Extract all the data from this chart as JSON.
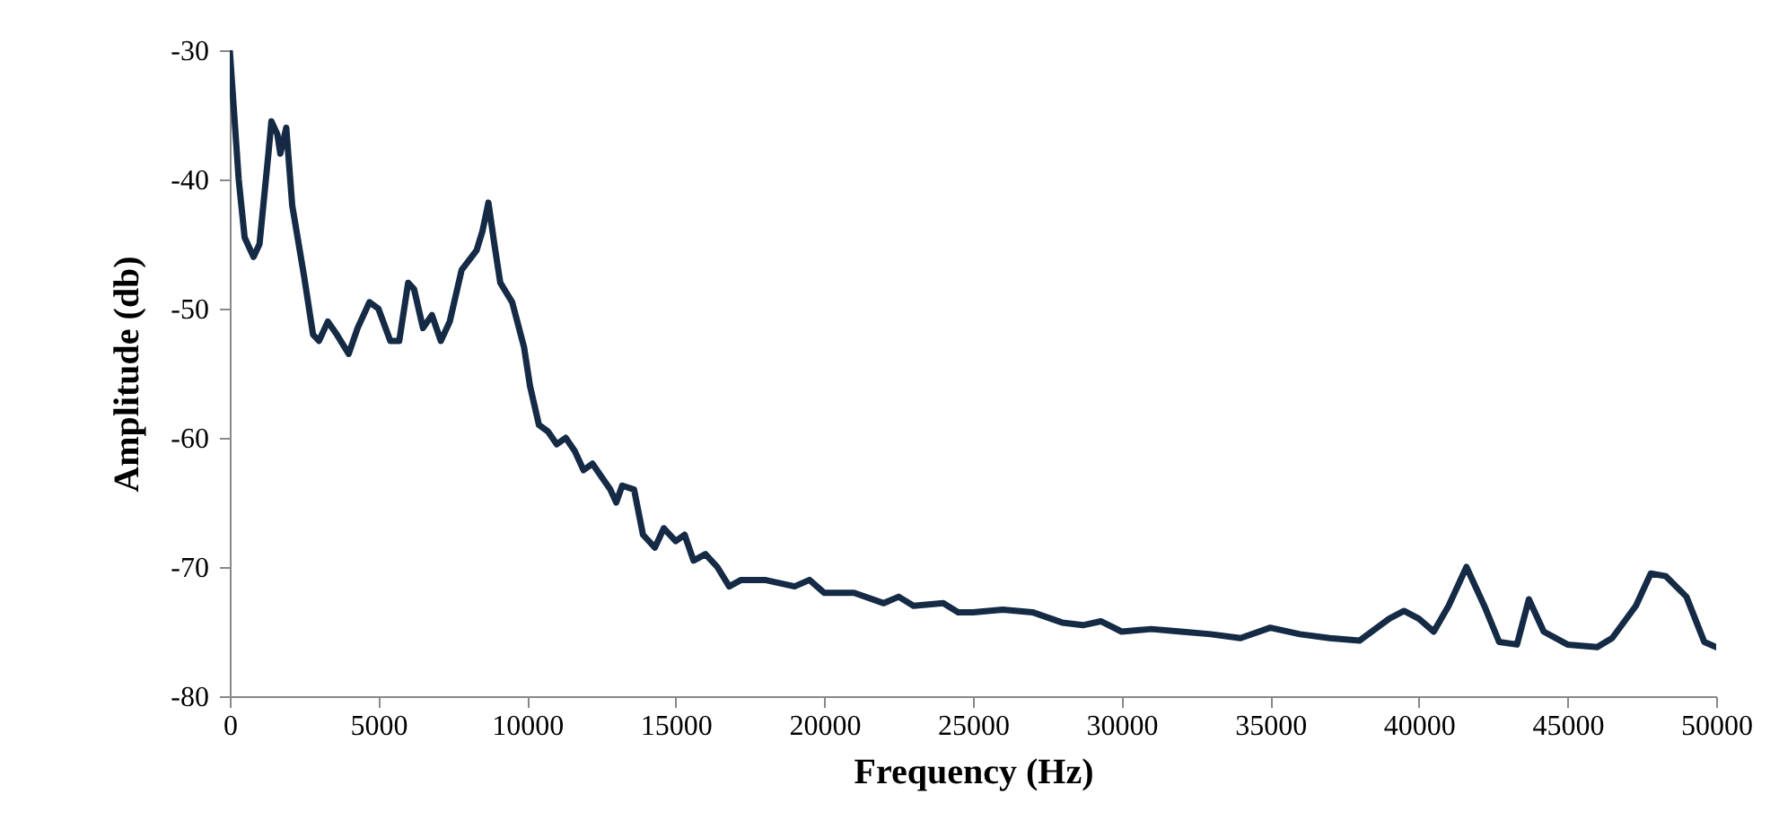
{
  "chart_data": {
    "type": "line",
    "xlabel": "Frequency (Hz)",
    "ylabel": "Amplitude (db)",
    "xlim": [
      0,
      50000
    ],
    "xticks": [
      0,
      5000,
      10000,
      15000,
      20000,
      25000,
      30000,
      35000,
      40000,
      45000,
      50000
    ],
    "ylim": [
      -80,
      -30
    ],
    "yticks": [
      -80,
      -70,
      -60,
      -50,
      -40,
      -30
    ],
    "grid": false,
    "marker": "none",
    "line_style": "solid",
    "x": [
      0,
      300,
      500,
      800,
      1000,
      1300,
      1400,
      1600,
      1700,
      1900,
      2100,
      2500,
      2800,
      3000,
      3300,
      3600,
      4000,
      4300,
      4700,
      5000,
      5400,
      5700,
      6000,
      6200,
      6500,
      6800,
      7100,
      7400,
      7800,
      8300,
      8500,
      8700,
      8900,
      9100,
      9500,
      9900,
      10100,
      10400,
      10700,
      11000,
      11300,
      11600,
      11900,
      12200,
      12500,
      12800,
      13000,
      13200,
      13600,
      13900,
      14300,
      14600,
      15000,
      15300,
      15600,
      16000,
      16400,
      16800,
      17200,
      18000,
      19000,
      19500,
      20000,
      21000,
      22000,
      22500,
      23000,
      24000,
      24500,
      25000,
      26000,
      27000,
      28000,
      28700,
      29300,
      30000,
      31000,
      32000,
      33000,
      34000,
      35000,
      36000,
      37000,
      38000,
      39000,
      39500,
      40000,
      40500,
      41000,
      41600,
      42200,
      42700,
      43300,
      43700,
      44200,
      45000,
      46000,
      46500,
      47300,
      47800,
      48300,
      49000,
      49600,
      50000
    ],
    "series": [
      {
        "color": "#142a45",
        "values": [
          -30,
          -40,
          -44.5,
          -46,
          -45,
          -38,
          -35.5,
          -36.5,
          -38,
          -36,
          -42,
          -47.5,
          -52,
          -52.5,
          -51,
          -52,
          -53.5,
          -51.5,
          -49.5,
          -50,
          -52.5,
          -52.5,
          -48,
          -48.5,
          -51.5,
          -50.5,
          -52.5,
          -51,
          -47,
          -45.5,
          -44,
          -41.8,
          -45,
          -48,
          -49.5,
          -53,
          -56,
          -59,
          -59.5,
          -60.5,
          -60,
          -61,
          -62.5,
          -62,
          -63,
          -64,
          -65,
          -63.7,
          -64,
          -67.5,
          -68.5,
          -67,
          -68,
          -67.5,
          -69.5,
          -69,
          -70,
          -71.5,
          -71,
          -71,
          -71.5,
          -71,
          -72,
          -72,
          -72.8,
          -72.3,
          -73,
          -72.8,
          -73.5,
          -73.5,
          -73.3,
          -73.5,
          -74.3,
          -74.5,
          -74.2,
          -75,
          -74.8,
          -75,
          -75.2,
          -75.5,
          -74.7,
          -75.2,
          -75.5,
          -75.7,
          -74,
          -73.4,
          -74,
          -75,
          -73,
          -70,
          -73,
          -75.8,
          -76,
          -72.5,
          -75,
          -76,
          -76.2,
          -75.5,
          -73,
          -70.5,
          -70.7,
          -72.3,
          -75.8,
          -76.2
        ]
      }
    ]
  }
}
